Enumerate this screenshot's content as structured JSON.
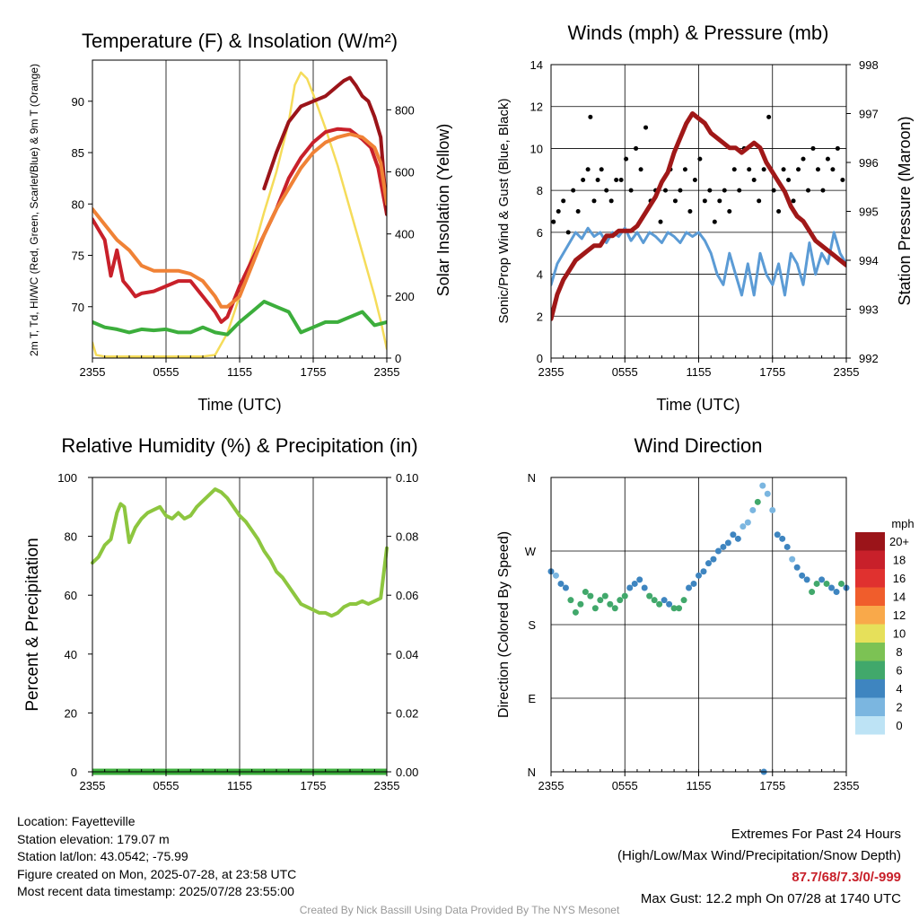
{
  "chart_data": [
    {
      "type": "line",
      "title": "Temperature (F) & Insolation (W/m²)",
      "xlabel": "Time (UTC)",
      "ylabel": "2m T, Td, HI/WC (Red, Green, Scarlet/Blue) & 9m T (Orange)",
      "y2label": "Solar Insolation (Yellow)",
      "xticks": [
        "2355",
        "0555",
        "1155",
        "1755",
        "2355"
      ],
      "ylim": [
        65,
        94
      ],
      "yticks": [
        70,
        75,
        80,
        85,
        90
      ],
      "y2lim": [
        0,
        960
      ],
      "y2ticks": [
        0,
        200,
        400,
        600,
        800
      ],
      "series": [
        {
          "name": "2m T",
          "color": "#c8202a",
          "axis": "left",
          "x": [
            0,
            1,
            1.5,
            2,
            2.5,
            3,
            3.5,
            4,
            5,
            6,
            7,
            8,
            9,
            10,
            10.5,
            11,
            12,
            13,
            14,
            15,
            16,
            17,
            18,
            19,
            20,
            21,
            22,
            22.7,
            23.3,
            24
          ],
          "y": [
            78.5,
            76.5,
            73,
            75.5,
            72.5,
            71.8,
            71,
            71.3,
            71.5,
            72,
            72.5,
            72.5,
            71,
            69.5,
            68.5,
            69,
            72,
            74.5,
            77,
            79.5,
            82.5,
            84.5,
            86,
            87,
            87.3,
            87.2,
            86.3,
            85.5,
            83.5,
            79
          ]
        },
        {
          "name": "Heat Index",
          "color": "#9b1419",
          "axis": "left",
          "x": [
            14,
            15,
            16,
            17,
            18,
            19,
            20,
            20.5,
            21,
            21.5,
            22,
            22.5,
            23,
            23.5,
            24
          ],
          "y": [
            81.5,
            85,
            88,
            89.5,
            90,
            90.5,
            91.5,
            92,
            92.3,
            91.5,
            90.5,
            90,
            88.5,
            86.5,
            79
          ]
        },
        {
          "name": "Td",
          "color": "#3cae3c",
          "axis": "left",
          "x": [
            0,
            1,
            2,
            3,
            4,
            5,
            6,
            7,
            8,
            9,
            10,
            11,
            12,
            13,
            14,
            15,
            16,
            17,
            18,
            19,
            20,
            21,
            22,
            23,
            24
          ],
          "y": [
            68.5,
            68,
            67.8,
            67.5,
            67.8,
            67.7,
            67.8,
            67.5,
            67.5,
            68,
            67.5,
            67.3,
            68.5,
            69.5,
            70.5,
            70,
            69.5,
            67.5,
            68,
            68.5,
            68.5,
            69,
            69.5,
            68.2,
            68.5
          ]
        },
        {
          "name": "9m T",
          "color": "#f08236",
          "axis": "left",
          "x": [
            0,
            1,
            2,
            3,
            4,
            5,
            6,
            7,
            8,
            9,
            10,
            10.5,
            11,
            12,
            13,
            14,
            15,
            16,
            17,
            18,
            19,
            20,
            21,
            22,
            23,
            23.5,
            24
          ],
          "y": [
            79.5,
            78,
            76.5,
            75.5,
            74,
            73.5,
            73.5,
            73.5,
            73.2,
            72.5,
            71,
            70,
            70,
            71,
            74,
            77,
            79.5,
            81.5,
            83.5,
            85,
            86,
            86.5,
            86.8,
            86.5,
            85.5,
            84,
            80
          ]
        },
        {
          "name": "Solar Insolation",
          "color": "#f5dc5a",
          "axis": "right",
          "x": [
            0,
            0.3,
            1,
            2,
            3,
            4,
            5,
            6,
            7,
            8,
            9,
            10,
            11,
            11.5,
            12,
            13,
            14,
            15,
            15.5,
            16,
            16.5,
            17,
            17.5,
            18,
            19,
            20,
            21,
            22,
            23,
            23.5,
            24
          ],
          "y": [
            50,
            10,
            5,
            5,
            5,
            5,
            5,
            5,
            5,
            5,
            5,
            10,
            80,
            140,
            200,
            330,
            470,
            600,
            680,
            760,
            880,
            920,
            900,
            850,
            740,
            620,
            480,
            340,
            200,
            120,
            30
          ]
        }
      ]
    },
    {
      "type": "scatter",
      "title": "Winds (mph) & Pressure (mb)",
      "xlabel": "Time (UTC)",
      "ylabel": "Sonic/Prop Wind & Gust (Blue, Black)",
      "y2label": "Station Pressure (Maroon)",
      "xticks": [
        "2355",
        "0555",
        "1155",
        "1755",
        "2355"
      ],
      "ylim": [
        0,
        14
      ],
      "yticks": [
        0,
        2,
        4,
        6,
        8,
        10,
        12,
        14
      ],
      "y2lim": [
        992,
        998
      ],
      "y2ticks": [
        992,
        993,
        994,
        995,
        996,
        997,
        998
      ],
      "series": [
        {
          "name": "Wind",
          "color": "#5b9bd5",
          "axis": "left",
          "x": [
            0,
            0.5,
            1,
            1.5,
            2,
            2.5,
            3,
            3.5,
            4,
            4.5,
            5,
            5.5,
            6,
            6.5,
            7,
            7.5,
            8,
            8.5,
            9,
            9.5,
            10,
            10.5,
            11,
            11.5,
            12,
            12.5,
            13,
            13.5,
            14,
            14.5,
            15,
            15.5,
            16,
            16.5,
            17,
            17.5,
            18,
            18.5,
            19,
            19.5,
            20,
            20.5,
            21,
            21.5,
            22,
            22.5,
            23,
            23.5,
            24
          ],
          "y": [
            3.5,
            4.5,
            5,
            5.5,
            6,
            5.7,
            6.2,
            5.8,
            6,
            5.5,
            6,
            5.8,
            6.2,
            5.6,
            6,
            5.5,
            6,
            5.8,
            5.5,
            6,
            5.8,
            5.5,
            6,
            5.8,
            6,
            5.6,
            5,
            4,
            3.5,
            5,
            4,
            3,
            4.5,
            3,
            5,
            4,
            3.5,
            4.5,
            3,
            5,
            4.5,
            3.5,
            5.5,
            4,
            5,
            4.5,
            6,
            5,
            4.5
          ]
        },
        {
          "name": "Gust",
          "color": "#000000",
          "axis": "left",
          "x": [
            0.2,
            0.6,
            1,
            1.4,
            1.8,
            2.2,
            2.6,
            3,
            3.2,
            3.5,
            3.8,
            4.1,
            4.5,
            4.9,
            5.3,
            5.7,
            6.1,
            6.5,
            6.9,
            7.3,
            7.7,
            8.1,
            8.5,
            8.9,
            9.3,
            9.7,
            10.1,
            10.5,
            10.9,
            11.3,
            11.7,
            12.1,
            12.5,
            12.9,
            13.3,
            13.7,
            14.1,
            14.5,
            14.9,
            15.3,
            15.7,
            16.1,
            16.5,
            16.9,
            17.3,
            17.7,
            18.1,
            18.5,
            18.9,
            19.3,
            19.7,
            20.1,
            20.5,
            20.9,
            21.3,
            21.7,
            22.1,
            22.5,
            22.9,
            23.3,
            23.7
          ],
          "y": [
            6.5,
            7,
            7.5,
            6,
            8,
            7,
            8.5,
            9,
            11.5,
            7.5,
            8.5,
            9,
            8,
            7.5,
            8.5,
            8.5,
            9.5,
            8,
            10,
            9,
            11,
            7.5,
            8,
            6.5,
            8,
            9,
            7.5,
            8,
            9,
            7,
            8.5,
            9.5,
            7.5,
            8,
            6.5,
            7.5,
            8,
            7,
            9,
            8,
            10,
            9,
            8.5,
            7.5,
            9,
            11.5,
            8,
            7,
            9,
            8.5,
            7.5,
            9,
            9.5,
            8,
            10,
            9,
            8,
            9.5,
            9,
            10,
            8.5
          ]
        },
        {
          "name": "Station Pressure",
          "color": "#a01818",
          "axis": "right",
          "x": [
            0,
            0.5,
            1,
            1.5,
            2,
            2.5,
            3,
            3.5,
            4,
            4.5,
            5,
            5.5,
            6,
            6.5,
            7,
            7.5,
            8,
            8.5,
            9,
            9.5,
            10,
            10.5,
            11,
            11.5,
            12,
            12.5,
            13,
            13.5,
            14,
            14.5,
            15,
            15.5,
            16,
            16.5,
            17,
            17.5,
            18,
            18.5,
            19,
            19.5,
            20,
            20.5,
            21,
            21.5,
            22,
            22.5,
            23,
            23.5,
            24
          ],
          "y": [
            992.8,
            993.3,
            993.6,
            993.8,
            994,
            994.1,
            994.2,
            994.3,
            994.3,
            994.5,
            994.5,
            994.6,
            994.6,
            994.6,
            994.7,
            994.9,
            995.1,
            995.3,
            995.6,
            995.8,
            996.2,
            996.5,
            996.8,
            997,
            996.9,
            996.8,
            996.6,
            996.5,
            996.4,
            996.3,
            996.3,
            996.2,
            996.3,
            996.4,
            996.3,
            996,
            995.8,
            995.6,
            995.4,
            995.1,
            994.9,
            994.8,
            994.6,
            994.4,
            994.3,
            994.2,
            994.1,
            994,
            993.9
          ]
        }
      ]
    },
    {
      "type": "line",
      "title": "Relative Humidity (%) & Precipitation (in)",
      "ylabel": "Percent & Precipitation",
      "xticks": [
        "2355",
        "0555",
        "1155",
        "1755",
        "2355"
      ],
      "ylim": [
        0,
        100
      ],
      "yticks": [
        0,
        20,
        40,
        60,
        80,
        100
      ],
      "y2lim": [
        0,
        0.1
      ],
      "y2ticks": [
        "0.00",
        "0.02",
        "0.04",
        "0.06",
        "0.08",
        "0.10"
      ],
      "series": [
        {
          "name": "Relative Humidity",
          "color": "#8dc63f",
          "axis": "left",
          "x": [
            0,
            0.5,
            1,
            1.5,
            2,
            2.3,
            2.6,
            3,
            3.5,
            4,
            4.5,
            5,
            5.5,
            6,
            6.5,
            7,
            7.5,
            8,
            8.5,
            9,
            9.5,
            10,
            10.5,
            11,
            11.5,
            12,
            12.5,
            13,
            13.5,
            14,
            14.5,
            15,
            15.5,
            16,
            16.5,
            17,
            17.5,
            18,
            18.5,
            19,
            19.5,
            20,
            20.5,
            21,
            21.5,
            22,
            22.5,
            23,
            23.5,
            24
          ],
          "y": [
            71,
            73,
            77,
            79,
            88,
            91,
            90,
            78,
            83,
            86,
            88,
            89,
            90,
            87,
            86,
            88,
            86,
            87,
            90,
            92,
            94,
            96,
            95,
            93,
            90,
            87,
            85,
            82,
            79,
            75,
            72,
            68,
            66,
            63,
            60,
            57,
            56,
            55,
            54,
            54,
            53,
            54,
            56,
            57,
            57,
            58,
            57,
            58,
            59,
            76
          ]
        },
        {
          "name": "Precipitation",
          "color": "#3cae3c",
          "axis": "right",
          "x": [
            0,
            24
          ],
          "y": [
            0,
            0
          ]
        }
      ]
    },
    {
      "type": "scatter",
      "title": "Wind Direction",
      "ylabel": "Direction (Colored By Speed)",
      "xticks": [
        "2355",
        "0555",
        "1155",
        "1755",
        "2355"
      ],
      "yticks": [
        "N",
        "E",
        "S",
        "W",
        "N"
      ],
      "ylim": [
        0,
        360
      ],
      "legend": {
        "title": "mph",
        "labels": [
          "20+",
          "18",
          "16",
          "14",
          "12",
          "10",
          "8",
          "6",
          "4",
          "2",
          "0"
        ],
        "colors": [
          "#9b1419",
          "#c8202a",
          "#e0312f",
          "#f05d2c",
          "#f9a94a",
          "#e6e05a",
          "#7cc254",
          "#41a86b",
          "#3e85c0",
          "#7bb6e0",
          "#bde3f5"
        ]
      },
      "points": {
        "x": [
          0,
          0.4,
          0.8,
          1.2,
          1.6,
          2,
          2.4,
          2.8,
          3.2,
          3.6,
          4,
          4.4,
          4.8,
          5.2,
          5.6,
          6,
          6.4,
          6.8,
          7.2,
          7.6,
          8,
          8.4,
          8.8,
          9.2,
          9.6,
          10,
          10.4,
          10.8,
          11.2,
          11.6,
          12,
          12.4,
          12.8,
          13.2,
          13.6,
          14,
          14.4,
          14.8,
          15.2,
          15.6,
          16,
          16.4,
          16.8,
          17.2,
          17.6,
          18,
          18.4,
          18.8,
          19.2,
          19.6,
          20,
          20.4,
          20.8,
          21.2,
          21.6,
          22,
          22.4,
          22.8,
          23.2,
          23.6,
          24,
          17.3
        ],
        "y": [
          245,
          240,
          230,
          225,
          210,
          195,
          205,
          220,
          215,
          200,
          210,
          215,
          205,
          200,
          210,
          215,
          225,
          230,
          235,
          225,
          215,
          210,
          205,
          210,
          205,
          200,
          200,
          210,
          225,
          230,
          240,
          245,
          255,
          260,
          270,
          275,
          280,
          290,
          285,
          300,
          305,
          320,
          330,
          350,
          340,
          320,
          290,
          285,
          275,
          260,
          250,
          240,
          235,
          220,
          230,
          235,
          230,
          225,
          220,
          230,
          225,
          0
        ],
        "c": [
          4,
          2,
          4,
          4,
          6,
          6,
          6,
          6,
          6,
          6,
          6,
          6,
          6,
          6,
          6,
          6,
          4,
          4,
          4,
          4,
          6,
          6,
          6,
          4,
          4,
          6,
          6,
          6,
          4,
          4,
          4,
          4,
          4,
          4,
          4,
          4,
          4,
          4,
          4,
          2,
          2,
          2,
          6,
          2,
          2,
          2,
          4,
          4,
          4,
          2,
          4,
          4,
          4,
          6,
          6,
          4,
          6,
          4,
          4,
          6,
          4,
          4
        ]
      }
    }
  ],
  "info": {
    "location": "Location: Fayetteville",
    "elevation": "Station elevation: 179.07 m",
    "latlon": "Station lat/lon: 43.0542; -75.99",
    "created": "Figure created on Mon, 2025-07-28, at 23:58 UTC",
    "recent": "Most recent data timestamp: 2025/07/28 23:55:00"
  },
  "extremes": {
    "title": "Extremes For Past 24 Hours",
    "subtitle": "(High/Low/Max Wind/Precipitation/Snow Depth)",
    "values": "87.7/68/7.3/0/-999",
    "gust": "Max Gust: 12.2 mph On 07/28 at 1740 UTC"
  },
  "credit": "Created By Nick Bassill Using Data Provided By The NYS Mesonet"
}
